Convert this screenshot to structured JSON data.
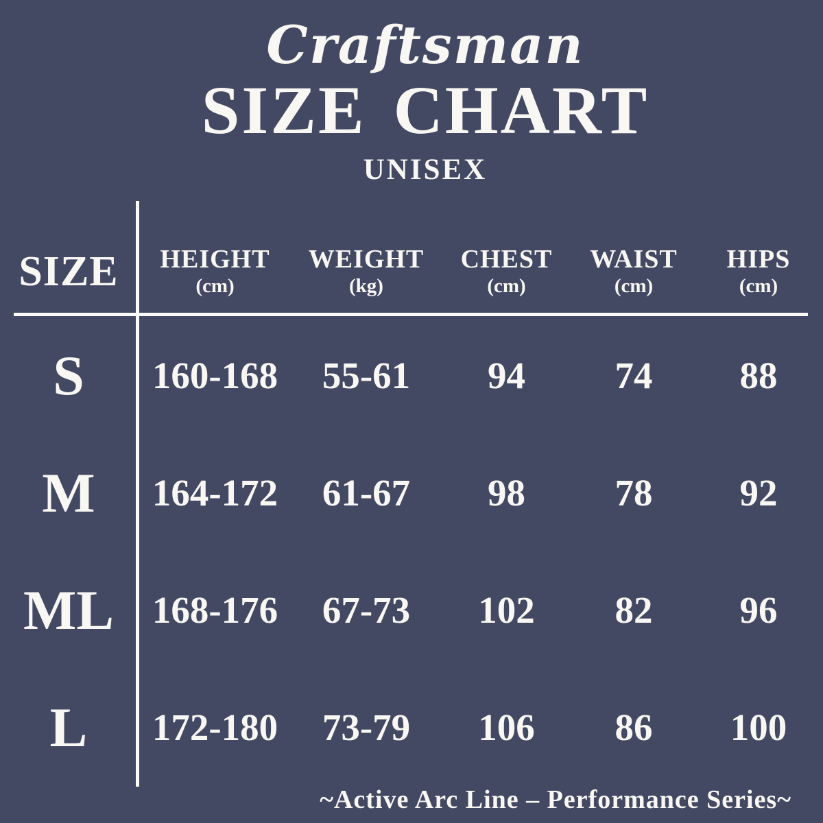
{
  "colors": {
    "background": "#434963",
    "text": "#F8F7F3",
    "rule": "#FBFBF9"
  },
  "header": {
    "brand_script": "Craftsman",
    "title": "SIZE CHART",
    "subtitle": "UNISEX"
  },
  "table": {
    "columns": [
      {
        "label": "SIZE",
        "unit": ""
      },
      {
        "label": "HEIGHT",
        "unit": "(cm)"
      },
      {
        "label": "WEIGHT",
        "unit": "(kg)"
      },
      {
        "label": "CHEST",
        "unit": "(cm)"
      },
      {
        "label": "WAIST",
        "unit": "(cm)"
      },
      {
        "label": "HIPS",
        "unit": "(cm)"
      }
    ],
    "rows": [
      {
        "size": "S",
        "height": "160-168",
        "weight": "55-61",
        "chest": "94",
        "waist": "74",
        "hips": "88"
      },
      {
        "size": "M",
        "height": "164-172",
        "weight": "61-67",
        "chest": "98",
        "waist": "78",
        "hips": "92"
      },
      {
        "size": "ML",
        "height": "168-176",
        "weight": "67-73",
        "chest": "102",
        "waist": "82",
        "hips": "96"
      },
      {
        "size": "L",
        "height": "172-180",
        "weight": "73-79",
        "chest": "106",
        "waist": "86",
        "hips": "100"
      }
    ]
  },
  "footer": {
    "tagline": "~Active Arc Line – Performance Series~"
  },
  "chart_data": {
    "type": "table",
    "title": "Craftsman SIZE CHART",
    "subtitle": "UNISEX",
    "columns": [
      "SIZE",
      "HEIGHT (cm)",
      "WEIGHT (kg)",
      "CHEST (cm)",
      "WAIST (cm)",
      "HIPS (cm)"
    ],
    "rows": [
      [
        "S",
        "160-168",
        "55-61",
        "94",
        "74",
        "88"
      ],
      [
        "M",
        "164-172",
        "61-67",
        "98",
        "78",
        "92"
      ],
      [
        "ML",
        "168-176",
        "67-73",
        "102",
        "82",
        "96"
      ],
      [
        "L",
        "172-180",
        "73-79",
        "106",
        "86",
        "100"
      ]
    ],
    "note": "~Active Arc Line – Performance Series~"
  }
}
